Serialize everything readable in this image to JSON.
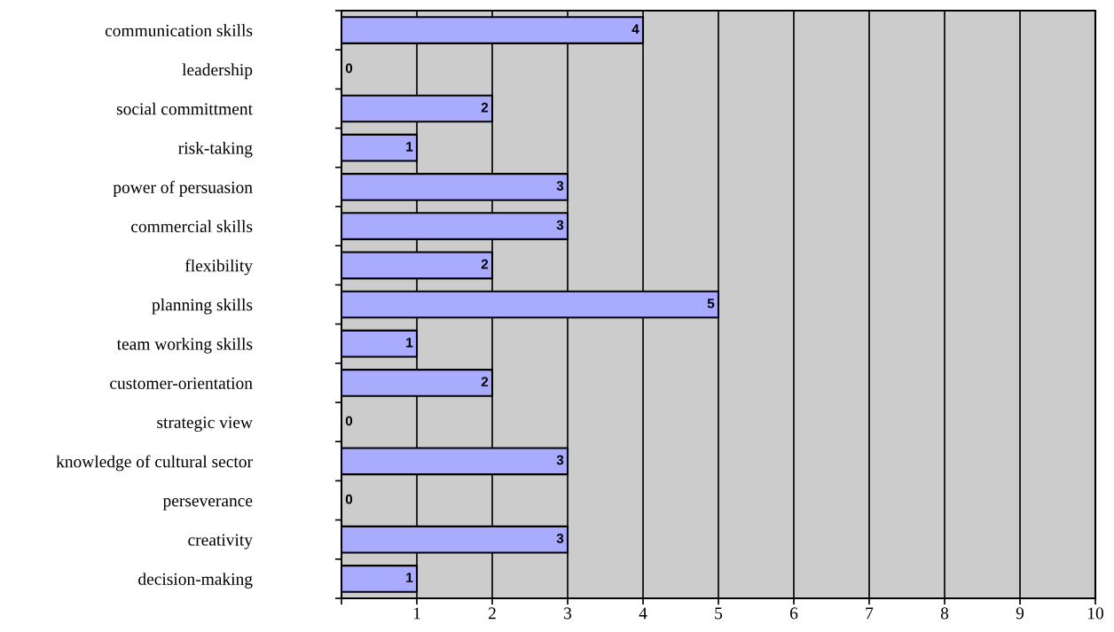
{
  "chart_data": {
    "type": "bar",
    "orientation": "horizontal",
    "categories": [
      "communication skills",
      "leadership",
      "social committment",
      "risk-taking",
      "power of persuasion",
      "commercial skills",
      "flexibility",
      "planning skills",
      "team working skills",
      "customer-orientation",
      "strategic view",
      "knowledge of cultural sector",
      "perseverance",
      "creativity",
      "decision-making"
    ],
    "values": [
      4,
      0,
      2,
      1,
      3,
      3,
      2,
      5,
      1,
      2,
      0,
      3,
      0,
      3,
      1
    ],
    "color": "#a9abff",
    "xlim": [
      0,
      10
    ],
    "xticks": [
      {
        "value": 0,
        "label": null
      },
      1,
      2,
      3,
      4,
      5,
      6,
      7,
      8,
      9,
      10
    ],
    "grid": "x",
    "data_labels": true,
    "legend": false
  }
}
